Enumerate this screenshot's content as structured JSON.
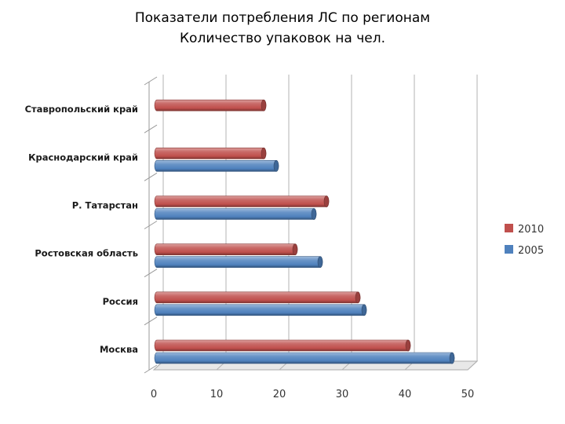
{
  "title_lines": [
    "Показатели потребления ЛС по регионам",
    "Количество упаковок на чел."
  ],
  "colors": {
    "2010": "#c0504d",
    "2005": "#4f81bd"
  },
  "chart_data": {
    "type": "bar",
    "orientation": "horizontal",
    "style": "3d-cylinder",
    "title": "Показатели потребления ЛС по регионам Количество упаковок на чел.",
    "categories": [
      "Москва",
      "Россия",
      "Ростовская область",
      "Р. Татарстан",
      "Краснодарский край",
      "Ставропольский край"
    ],
    "series": [
      {
        "name": "2010",
        "values": [
          40.5,
          32.5,
          22.5,
          27.5,
          17.5,
          17.5
        ]
      },
      {
        "name": "2005",
        "values": [
          47.5,
          33.5,
          26.5,
          25.5,
          19.5,
          null
        ]
      }
    ],
    "xlim": [
      0,
      50
    ],
    "xticks": [
      "0",
      "10",
      "20",
      "30",
      "40",
      "50"
    ],
    "xlabel": "",
    "ylabel": "",
    "grid": true,
    "legend": "right"
  }
}
